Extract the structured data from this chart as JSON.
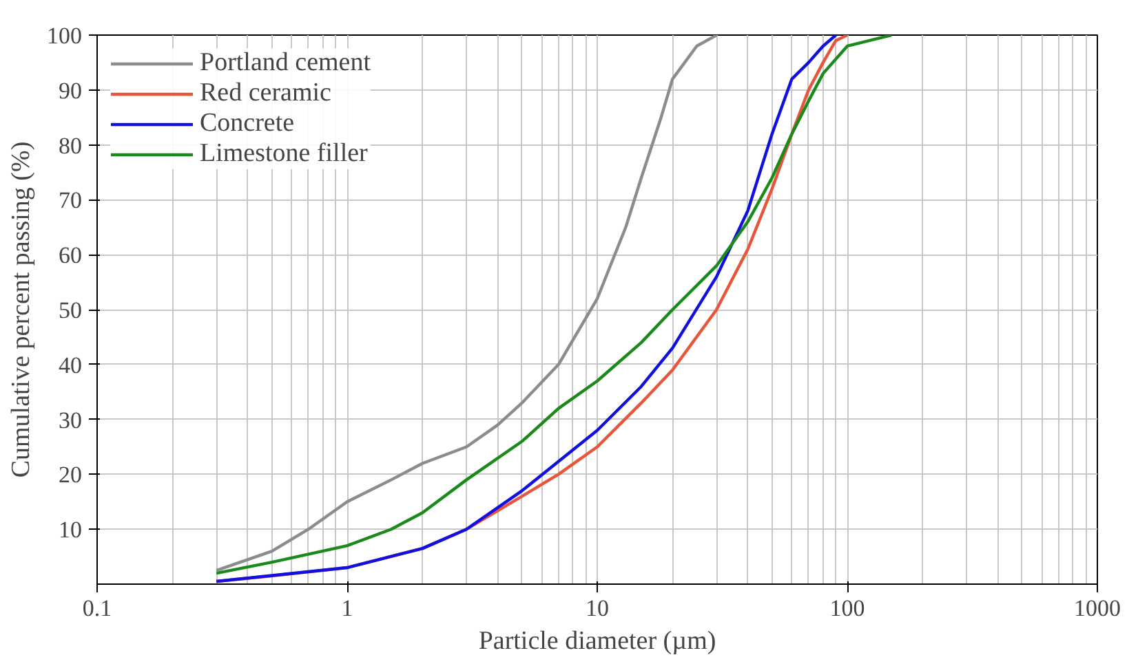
{
  "chart_data": {
    "type": "line",
    "xlabel": "Particle diameter (µm)",
    "ylabel": "Cumulative percent passing (%)",
    "log": "x",
    "xlim": [
      0.1,
      1000
    ],
    "xticks": [
      0.1,
      1,
      10,
      100,
      1000
    ],
    "ylim": [
      0,
      100
    ],
    "yticks": [
      10,
      20,
      30,
      40,
      50,
      60,
      70,
      80,
      90,
      100
    ],
    "grid": true,
    "legend": "top left",
    "marker": "none",
    "line_style": "solid",
    "series": [
      {
        "name": "Portland cement",
        "color": "#8c8c8c",
        "x": [
          0.3,
          0.5,
          0.7,
          1,
          1.5,
          2,
          3,
          4,
          5,
          7,
          10,
          13,
          15,
          18,
          20,
          25,
          30
        ],
        "values": [
          2.5,
          6,
          10,
          15,
          19,
          22,
          25,
          29,
          33,
          40,
          52,
          65,
          74,
          85,
          92,
          98,
          100
        ]
      },
      {
        "name": "Red ceramic",
        "color": "#e8553a",
        "x": [
          0.3,
          0.5,
          1,
          2,
          3,
          5,
          7,
          10,
          15,
          20,
          30,
          40,
          50,
          60,
          70,
          80,
          90,
          100
        ],
        "values": [
          0.5,
          1.5,
          3,
          6.5,
          10,
          16,
          20,
          25,
          33,
          39,
          50,
          61,
          72,
          82,
          90,
          95,
          99,
          100
        ]
      },
      {
        "name": "Concrete",
        "color": "#1010e0",
        "x": [
          0.3,
          1,
          2,
          3,
          5,
          10,
          15,
          20,
          30,
          40,
          50,
          60,
          70,
          80,
          90
        ],
        "values": [
          0.5,
          3,
          6.5,
          10,
          17,
          28,
          36,
          43,
          56,
          68,
          82,
          92,
          95,
          98,
          100
        ]
      },
      {
        "name": "Limestone filler",
        "color": "#1a8a1a",
        "x": [
          0.3,
          0.5,
          1,
          1.5,
          2,
          3,
          5,
          7,
          10,
          15,
          20,
          30,
          40,
          50,
          60,
          70,
          80,
          100,
          150
        ],
        "values": [
          2,
          4,
          7,
          10,
          13,
          19,
          26,
          32,
          37,
          44,
          50,
          58,
          66,
          74,
          82,
          88,
          93,
          98,
          100
        ]
      }
    ]
  }
}
